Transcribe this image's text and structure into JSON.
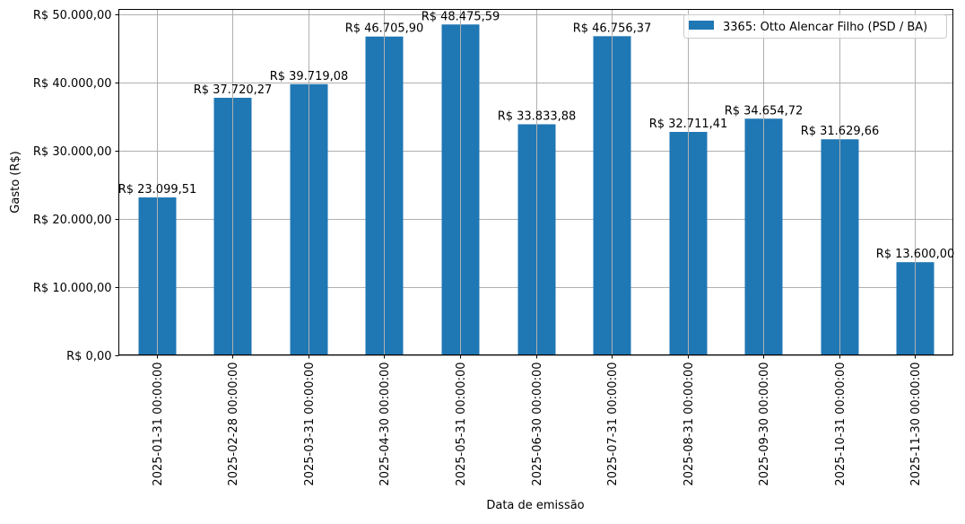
{
  "chart_data": {
    "type": "bar",
    "xlabel": "Data de emissão",
    "ylabel": "Gasto (R$)",
    "ylim": [
      0,
      50000
    ],
    "grid": true,
    "legend_position": "top-right",
    "yticks": [
      0,
      10000,
      20000,
      30000,
      40000,
      50000
    ],
    "ytick_labels": [
      "R$ 0,00",
      "R$ 10.000,00",
      "R$ 20.000,00",
      "R$ 30.000,00",
      "R$ 40.000,00",
      "R$ 50.000,00"
    ],
    "categories": [
      "2025-01-31 00:00:00",
      "2025-02-28 00:00:00",
      "2025-03-31 00:00:00",
      "2025-04-30 00:00:00",
      "2025-05-31 00:00:00",
      "2025-06-30 00:00:00",
      "2025-07-31 00:00:00",
      "2025-08-31 00:00:00",
      "2025-09-30 00:00:00",
      "2025-10-31 00:00:00",
      "2025-11-30 00:00:00"
    ],
    "series": [
      {
        "name": "3365: Otto Alencar Filho (PSD / BA)",
        "color": "#1f77b4",
        "values": [
          23099.51,
          37720.27,
          39719.08,
          46705.9,
          48475.59,
          33833.88,
          46756.37,
          32711.41,
          34654.72,
          31629.66,
          13600.0
        ],
        "data_labels": [
          "R$ 23.099,51",
          "R$ 37.720,27",
          "R$ 39.719,08",
          "R$ 46.705,90",
          "R$ 48.475,59",
          "R$ 33.833,88",
          "R$ 46.756,37",
          "R$ 32.711,41",
          "R$ 34.654,72",
          "R$ 31.629,66",
          "R$ 13.600,00"
        ]
      }
    ]
  }
}
